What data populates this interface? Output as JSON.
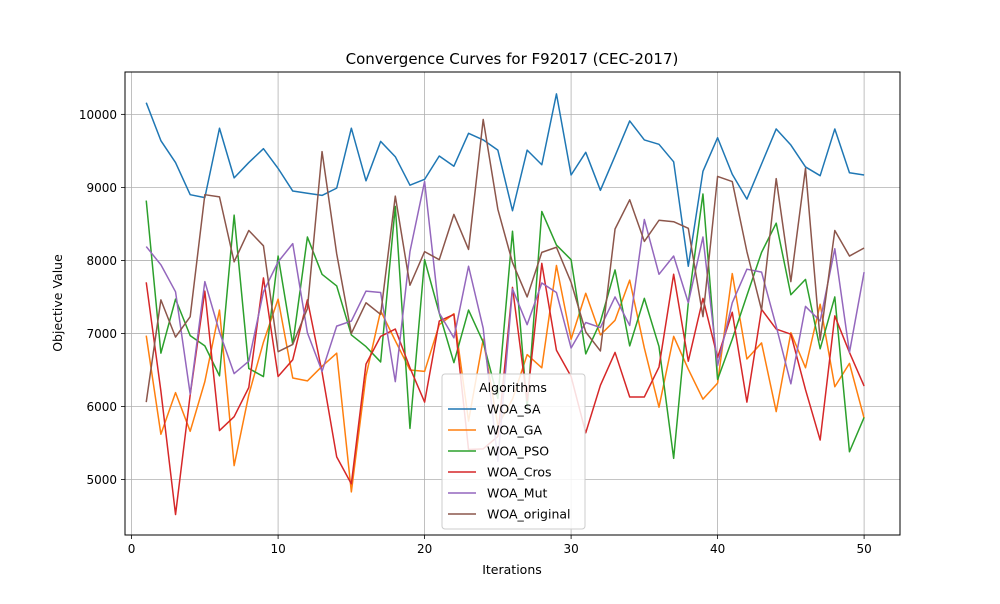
{
  "chart_data": {
    "type": "line",
    "title": "Convergence Curves for F92017 (CEC-2017)",
    "xlabel": "Iterations",
    "ylabel": "Objective Value",
    "xlim": [
      -0.45,
      52.45
    ],
    "ylim": [
      4240,
      10580
    ],
    "xticks": [
      0,
      10,
      20,
      30,
      40,
      50
    ],
    "yticks": [
      5000,
      6000,
      7000,
      8000,
      9000,
      10000
    ],
    "grid": true,
    "legend": {
      "title": "Algorithms",
      "placement": "lower center"
    },
    "x": [
      1,
      2,
      3,
      4,
      5,
      6,
      7,
      8,
      9,
      10,
      11,
      12,
      13,
      14,
      15,
      16,
      17,
      18,
      19,
      20,
      21,
      22,
      23,
      24,
      25,
      26,
      27,
      28,
      29,
      30,
      31,
      32,
      33,
      34,
      35,
      36,
      37,
      38,
      39,
      40,
      41,
      42,
      43,
      44,
      45,
      46,
      47,
      48,
      49,
      50
    ],
    "series": [
      {
        "name": "WOA_SA",
        "color": "#1f77b4",
        "values": [
          10160,
          9640,
          9340,
          8900,
          8860,
          9810,
          9130,
          9340,
          9530,
          9260,
          8950,
          8920,
          8890,
          8990,
          9810,
          9090,
          9630,
          9420,
          9030,
          9110,
          9430,
          9290,
          9740,
          9650,
          9510,
          8680,
          9510,
          9310,
          10280,
          9170,
          9480,
          8960,
          9430,
          9910,
          9650,
          9590,
          9350,
          7920,
          9220,
          9680,
          9180,
          8840,
          9320,
          9800,
          9580,
          9280,
          9160,
          9800,
          9200,
          9170
        ]
      },
      {
        "name": "WOA_GA",
        "color": "#ff7f0e",
        "values": [
          6970,
          5620,
          6190,
          5660,
          6340,
          7320,
          5190,
          6160,
          6880,
          7470,
          6390,
          6350,
          6550,
          6730,
          4830,
          6420,
          7310,
          6900,
          6500,
          6480,
          7120,
          7270,
          5800,
          6920,
          5740,
          6100,
          6710,
          6530,
          7930,
          6920,
          7550,
          6980,
          7180,
          7730,
          6800,
          5990,
          6960,
          6510,
          6100,
          6320,
          7820,
          6650,
          6870,
          5930,
          7010,
          6530,
          7400,
          6270,
          6590,
          5840
        ]
      },
      {
        "name": "WOA_PSO",
        "color": "#2ca02c",
        "values": [
          8820,
          6730,
          7470,
          6970,
          6830,
          6420,
          8620,
          6520,
          6410,
          8060,
          6850,
          8320,
          7810,
          7650,
          6980,
          6820,
          6610,
          8740,
          5700,
          8010,
          7280,
          6600,
          7320,
          6880,
          6110,
          8400,
          5980,
          8670,
          8210,
          8010,
          6720,
          7160,
          7870,
          6830,
          7480,
          6820,
          5290,
          7420,
          8910,
          6370,
          6920,
          7520,
          8110,
          8510,
          7530,
          7740,
          6790,
          7500,
          5380,
          5850
        ]
      },
      {
        "name": "WOA_Cros",
        "color": "#d62728",
        "values": [
          7700,
          6210,
          4520,
          6160,
          7580,
          5670,
          5860,
          6260,
          7760,
          6410,
          6640,
          7460,
          6470,
          5310,
          4940,
          6580,
          6960,
          7060,
          6530,
          6060,
          7170,
          7260,
          5410,
          5420,
          5590,
          7630,
          6080,
          7960,
          6770,
          6410,
          5640,
          6290,
          6740,
          6130,
          6130,
          6540,
          7810,
          6620,
          7480,
          6670,
          7290,
          6060,
          7330,
          7060,
          6990,
          6230,
          5540,
          7240,
          6740,
          6280
        ]
      },
      {
        "name": "WOA_Mut",
        "color": "#9467bd",
        "values": [
          8190,
          7940,
          7570,
          6170,
          7710,
          7020,
          6450,
          6620,
          7570,
          7980,
          8230,
          7010,
          6480,
          7100,
          7170,
          7580,
          7560,
          6340,
          8120,
          9080,
          7280,
          6940,
          7920,
          7070,
          5250,
          7610,
          7120,
          7690,
          7560,
          6800,
          7150,
          7080,
          7500,
          7110,
          8560,
          7810,
          8060,
          7420,
          8320,
          6560,
          7420,
          7880,
          7840,
          7100,
          6310,
          7370,
          7170,
          8160,
          6740,
          7840
        ]
      },
      {
        "name": "WOA_original",
        "color": "#8c564b",
        "values": [
          6060,
          7460,
          6950,
          7230,
          8900,
          8870,
          7980,
          8410,
          8200,
          6750,
          6850,
          7340,
          9490,
          8090,
          7000,
          7420,
          7260,
          8880,
          7660,
          8120,
          8010,
          8630,
          8150,
          9930,
          8700,
          7970,
          7500,
          8110,
          8180,
          7700,
          7020,
          6760,
          8430,
          8830,
          8260,
          8550,
          8530,
          8440,
          7230,
          9150,
          9080,
          8120,
          7320,
          9120,
          7710,
          9260,
          6910,
          8410,
          8060,
          8170
        ]
      }
    ]
  }
}
